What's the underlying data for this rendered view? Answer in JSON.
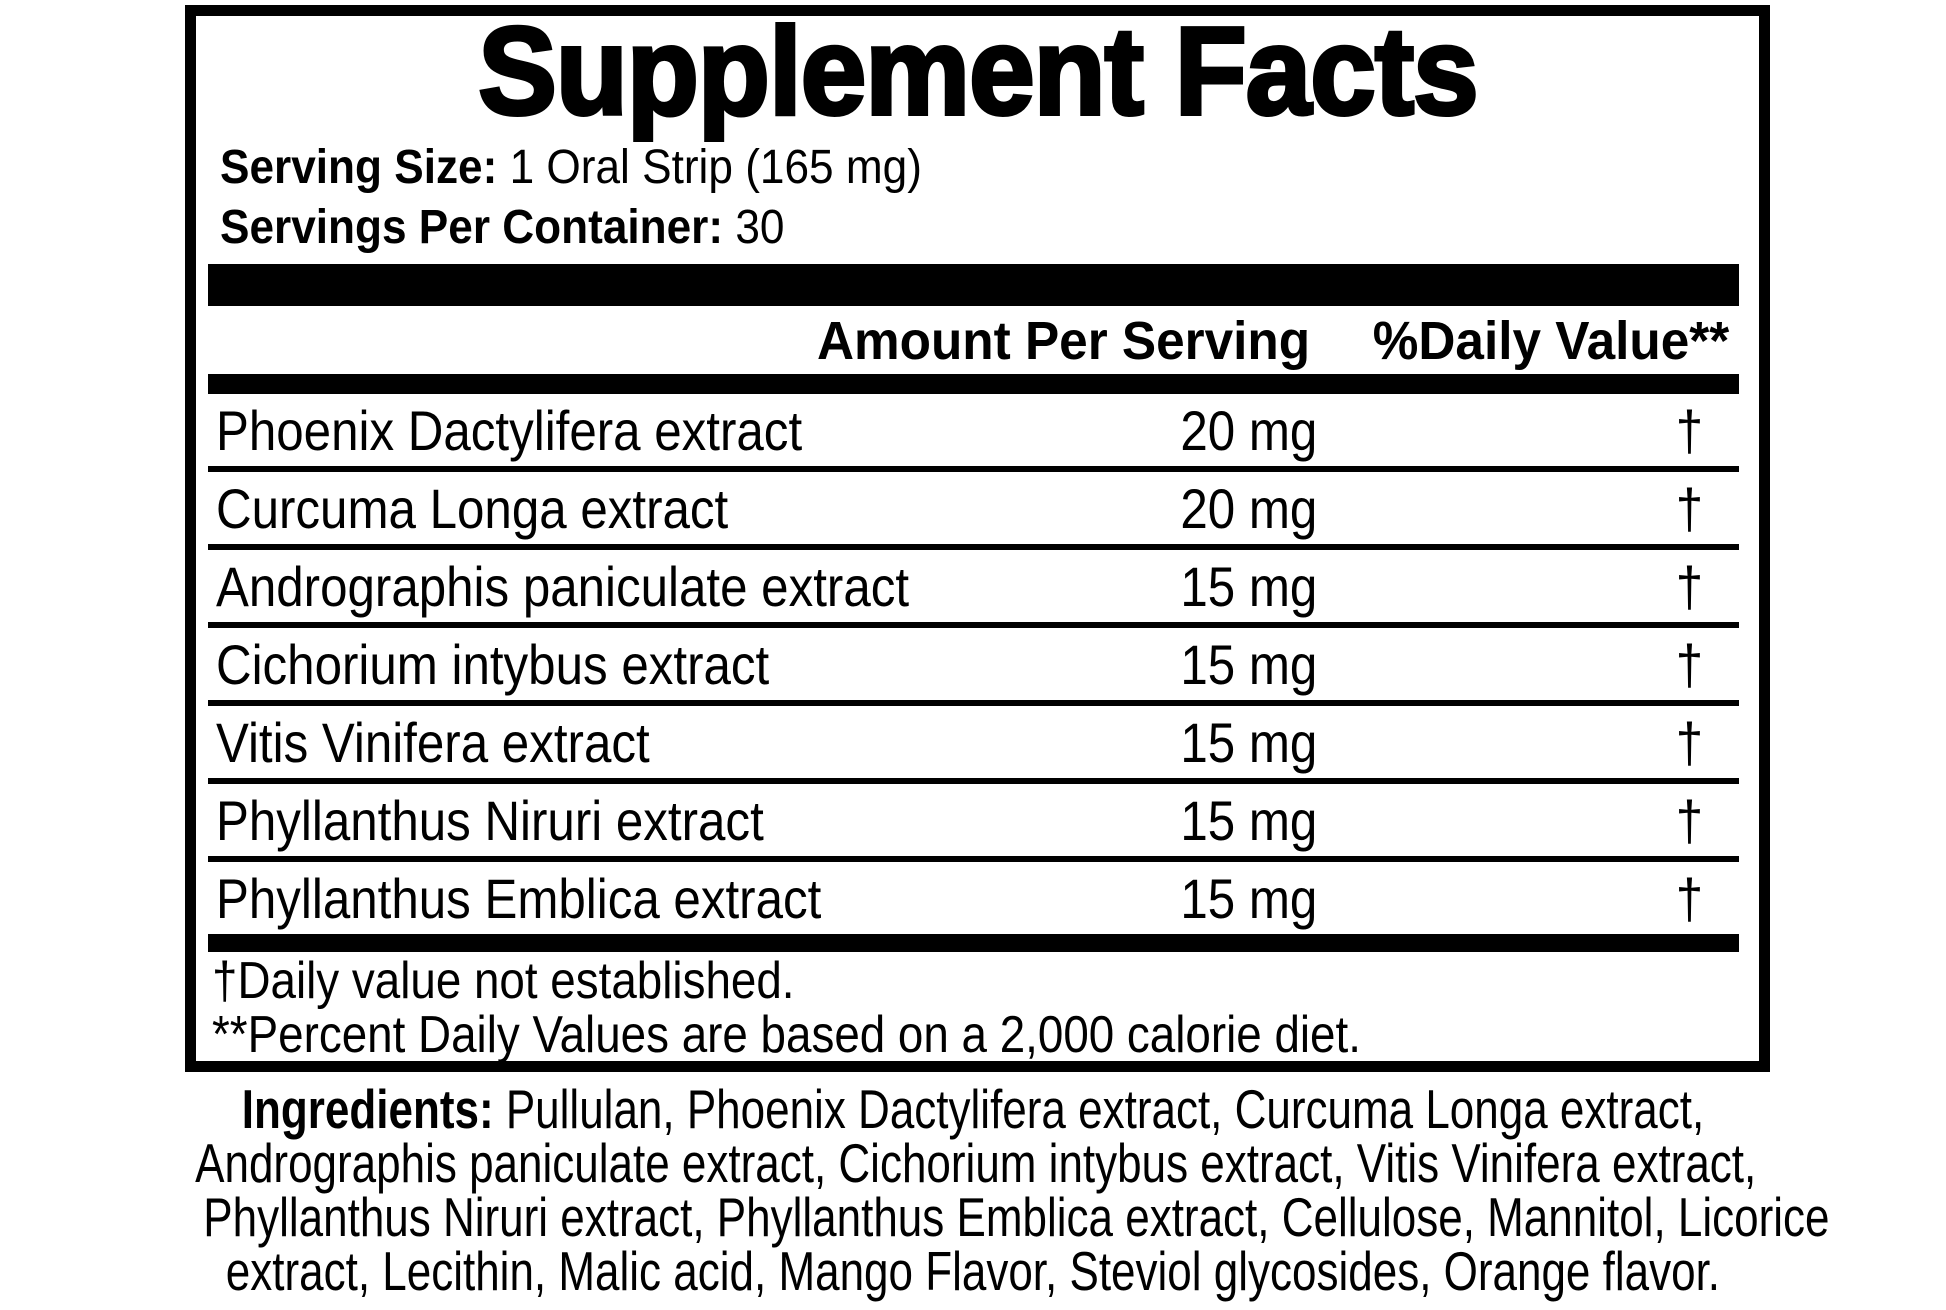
{
  "label": {
    "title": "Supplement Facts",
    "serving_size_label": "Serving Size:",
    "serving_size_value": "1 Oral Strip (165 mg)",
    "servings_per_container_label": "Servings Per Container:",
    "servings_per_container_value": "30",
    "columns": {
      "amount_header": "Amount Per Serving",
      "daily_value_header": "%Daily Value**"
    },
    "rows": [
      {
        "name": "Phoenix Dactylifera extract",
        "amount": "20 mg",
        "dv": "†"
      },
      {
        "name": "Curcuma Longa extract",
        "amount": "20 mg",
        "dv": "†"
      },
      {
        "name": "Andrographis paniculate extract",
        "amount": "15 mg",
        "dv": "†"
      },
      {
        "name": "Cichorium intybus extract",
        "amount": "15 mg",
        "dv": "†"
      },
      {
        "name": "Vitis Vinifera  extract",
        "amount": "15 mg",
        "dv": "†"
      },
      {
        "name": "Phyllanthus Niruri extract",
        "amount": "15 mg",
        "dv": "†"
      },
      {
        "name": "Phyllanthus Emblica extract",
        "amount": "15 mg",
        "dv": "†"
      }
    ],
    "footnotes": [
      "†Daily value not established.",
      "**Percent Daily Values are based on a 2,000 calorie diet."
    ]
  },
  "ingredients": {
    "label": "Ingredients:",
    "lines": [
      "Pullulan, Phoenix Dactylifera extract, Curcuma Longa extract,",
      "Andrographis paniculate extract, Cichorium intybus extract, Vitis Vinifera extract,",
      "Phyllanthus Niruri extract, Phyllanthus Emblica extract, Cellulose, Mannitol, Licorice",
      "extract, Lecithin, Malic acid, Mango Flavor, Steviol glycosides, Orange flavor."
    ]
  },
  "colors": {
    "ink": "#000000",
    "background": "#ffffff"
  }
}
